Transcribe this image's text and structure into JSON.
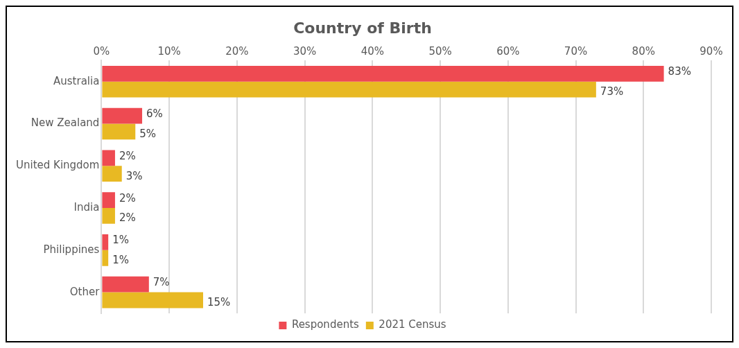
{
  "chart_data": {
    "type": "bar",
    "orientation": "horizontal",
    "title": "Country of Birth",
    "categories": [
      "Australia",
      "New Zealand",
      "United Kingdom",
      "India",
      "Philippines",
      "Other"
    ],
    "series": [
      {
        "name": "Respondents",
        "color": "#ee4a52",
        "values": [
          83,
          6,
          2,
          2,
          1,
          7
        ],
        "value_labels": [
          "83%",
          "6%",
          "2%",
          "2%",
          "1%",
          "7%"
        ]
      },
      {
        "name": "2021 Census",
        "color": "#e8b923",
        "values": [
          73,
          5,
          3,
          2,
          1,
          15
        ],
        "value_labels": [
          "73%",
          "5%",
          "3%",
          "2%",
          "1%",
          "15%"
        ]
      }
    ],
    "xlim": [
      0,
      90
    ],
    "xticks": [
      {
        "value": 0,
        "label": "0%"
      },
      {
        "value": 10,
        "label": "10%"
      },
      {
        "value": 20,
        "label": "20%"
      },
      {
        "value": 30,
        "label": "30%"
      },
      {
        "value": 40,
        "label": "40%"
      },
      {
        "value": 50,
        "label": "50%"
      },
      {
        "value": 60,
        "label": "60%"
      },
      {
        "value": 70,
        "label": "70%"
      },
      {
        "value": 80,
        "label": "80%"
      },
      {
        "value": 90,
        "label": "90%"
      }
    ],
    "grid": "x",
    "legend": "bottom"
  }
}
